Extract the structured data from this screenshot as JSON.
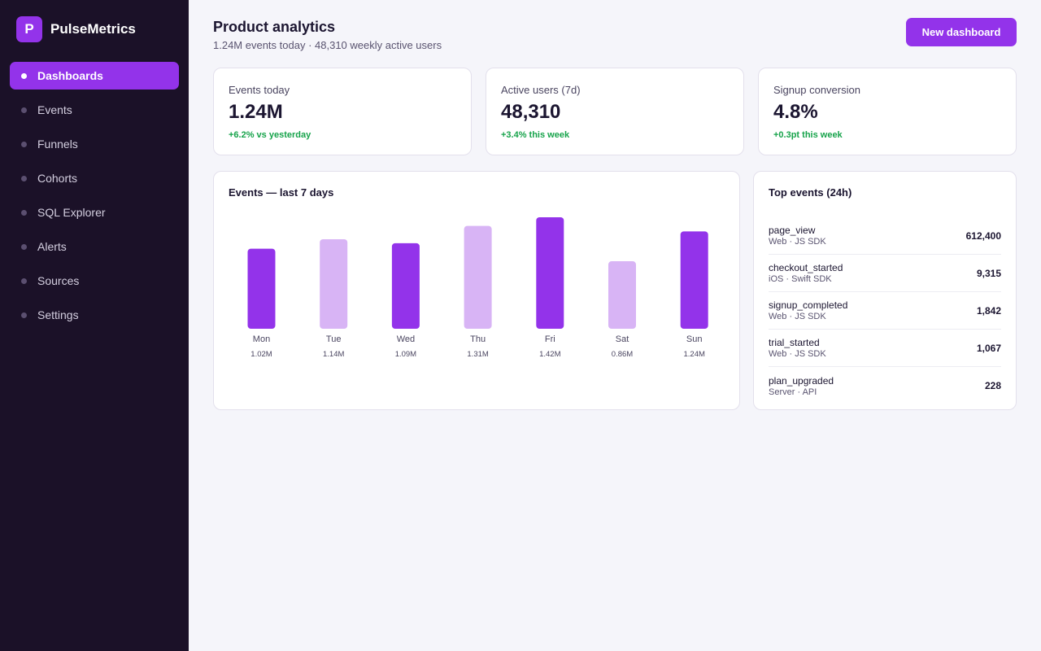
{
  "brand": {
    "logo_letter": "P",
    "name": "PulseMetrics"
  },
  "sidebar": {
    "items": [
      {
        "label": "Dashboards",
        "active": true
      },
      {
        "label": "Events"
      },
      {
        "label": "Funnels"
      },
      {
        "label": "Cohorts"
      },
      {
        "label": "SQL Explorer"
      },
      {
        "label": "Alerts"
      },
      {
        "label": "Sources"
      },
      {
        "label": "Settings"
      }
    ]
  },
  "header": {
    "title": "Product analytics",
    "subtitle": "1.24M events today · 48,310 weekly active users",
    "new_button": "New dashboard"
  },
  "kpis": [
    {
      "label": "Events today",
      "value": "1.24M",
      "delta": "+6.2% vs yesterday"
    },
    {
      "label": "Active users (7d)",
      "value": "48,310",
      "delta": "+3.4% this week"
    },
    {
      "label": "Signup conversion",
      "value": "4.8%",
      "delta": "+0.3pt this week"
    }
  ],
  "chart_data": {
    "type": "bar",
    "title": "Events — last 7 days",
    "categories": [
      "Mon",
      "Tue",
      "Wed",
      "Thu",
      "Fri",
      "Sat",
      "Sun"
    ],
    "values": [
      1.02,
      1.14,
      1.09,
      1.31,
      1.42,
      0.86,
      1.24
    ],
    "value_labels": [
      "1.02M",
      "1.14M",
      "1.09M",
      "1.31M",
      "1.42M",
      "0.86M",
      "1.24M"
    ],
    "highlighted": [
      true,
      false,
      true,
      false,
      true,
      false,
      true
    ],
    "unit": "M",
    "grid": false
  },
  "top_events": {
    "title": "Top events (24h)",
    "rows": [
      {
        "name": "page_view",
        "source": "Web · JS SDK",
        "count": "612,400"
      },
      {
        "name": "checkout_started",
        "source": "iOS · Swift SDK",
        "count": "9,315"
      },
      {
        "name": "signup_completed",
        "source": "Web · JS SDK",
        "count": "1,842"
      },
      {
        "name": "trial_started",
        "source": "Web · JS SDK",
        "count": "1,067"
      },
      {
        "name": "plan_upgraded",
        "source": "Server · API",
        "count": "228"
      }
    ]
  },
  "colors": {
    "accent": "#9333ea",
    "accent_light": "#d8b4f5",
    "sidebar_bg": "#1b1128",
    "positive": "#16a34a"
  }
}
